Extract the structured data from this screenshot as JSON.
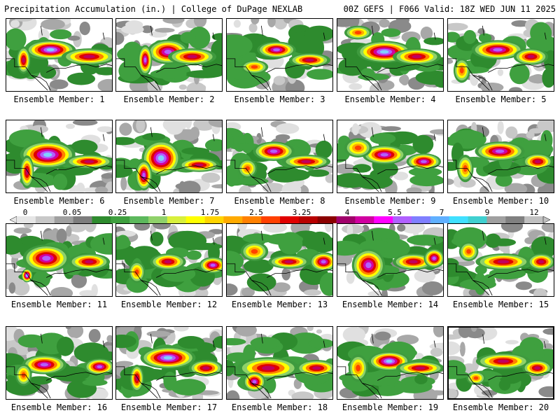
{
  "header": {
    "left": "Precipitation Accumulation (in.) | College of DuPage NEXLAB",
    "right": "00Z GEFS | F066 Valid: 18Z WED JUN 11 2025"
  },
  "colorbar": {
    "tick_labels": [
      "0",
      "0.05",
      "0.25",
      "1",
      "1.75",
      "2.5",
      "3.25",
      "4",
      "5.5",
      "7",
      "9",
      "12"
    ],
    "colors": [
      "#e6e6e6",
      "#c8c8c8",
      "#a0a0a0",
      "#7d7d7d",
      "#2e8b2e",
      "#3fa03f",
      "#5cb85c",
      "#8fd16a",
      "#d8f03c",
      "#ffff00",
      "#ffd400",
      "#ffaa00",
      "#ff8000",
      "#ff4000",
      "#e00000",
      "#b80000",
      "#8b0000",
      "#a0006a",
      "#d000a0",
      "#ff00ff",
      "#b060ff",
      "#7f7fff",
      "#60b0ff",
      "#40e0ff",
      "#40d0d0",
      "#a0a0a0",
      "#808080",
      "#c0c0c0"
    ]
  },
  "members": [
    {
      "label": "Ensemble Member: 1"
    },
    {
      "label": "Ensemble Member: 2"
    },
    {
      "label": "Ensemble Member: 3"
    },
    {
      "label": "Ensemble Member: 4"
    },
    {
      "label": "Ensemble Member: 5"
    },
    {
      "label": "Ensemble Member: 6"
    },
    {
      "label": "Ensemble Member: 7"
    },
    {
      "label": "Ensemble Member: 8"
    },
    {
      "label": "Ensemble Member: 9"
    },
    {
      "label": "Ensemble Member: 10"
    },
    {
      "label": "Ensemble Member: 11"
    },
    {
      "label": "Ensemble Member: 12"
    },
    {
      "label": "Ensemble Member: 13"
    },
    {
      "label": "Ensemble Member: 14"
    },
    {
      "label": "Ensemble Member: 15"
    },
    {
      "label": "Ensemble Member: 16"
    },
    {
      "label": "Ensemble Member: 17"
    },
    {
      "label": "Ensemble Member: 18"
    },
    {
      "label": "Ensemble Member: 19"
    },
    {
      "label": "Ensemble Member: 20"
    }
  ]
}
